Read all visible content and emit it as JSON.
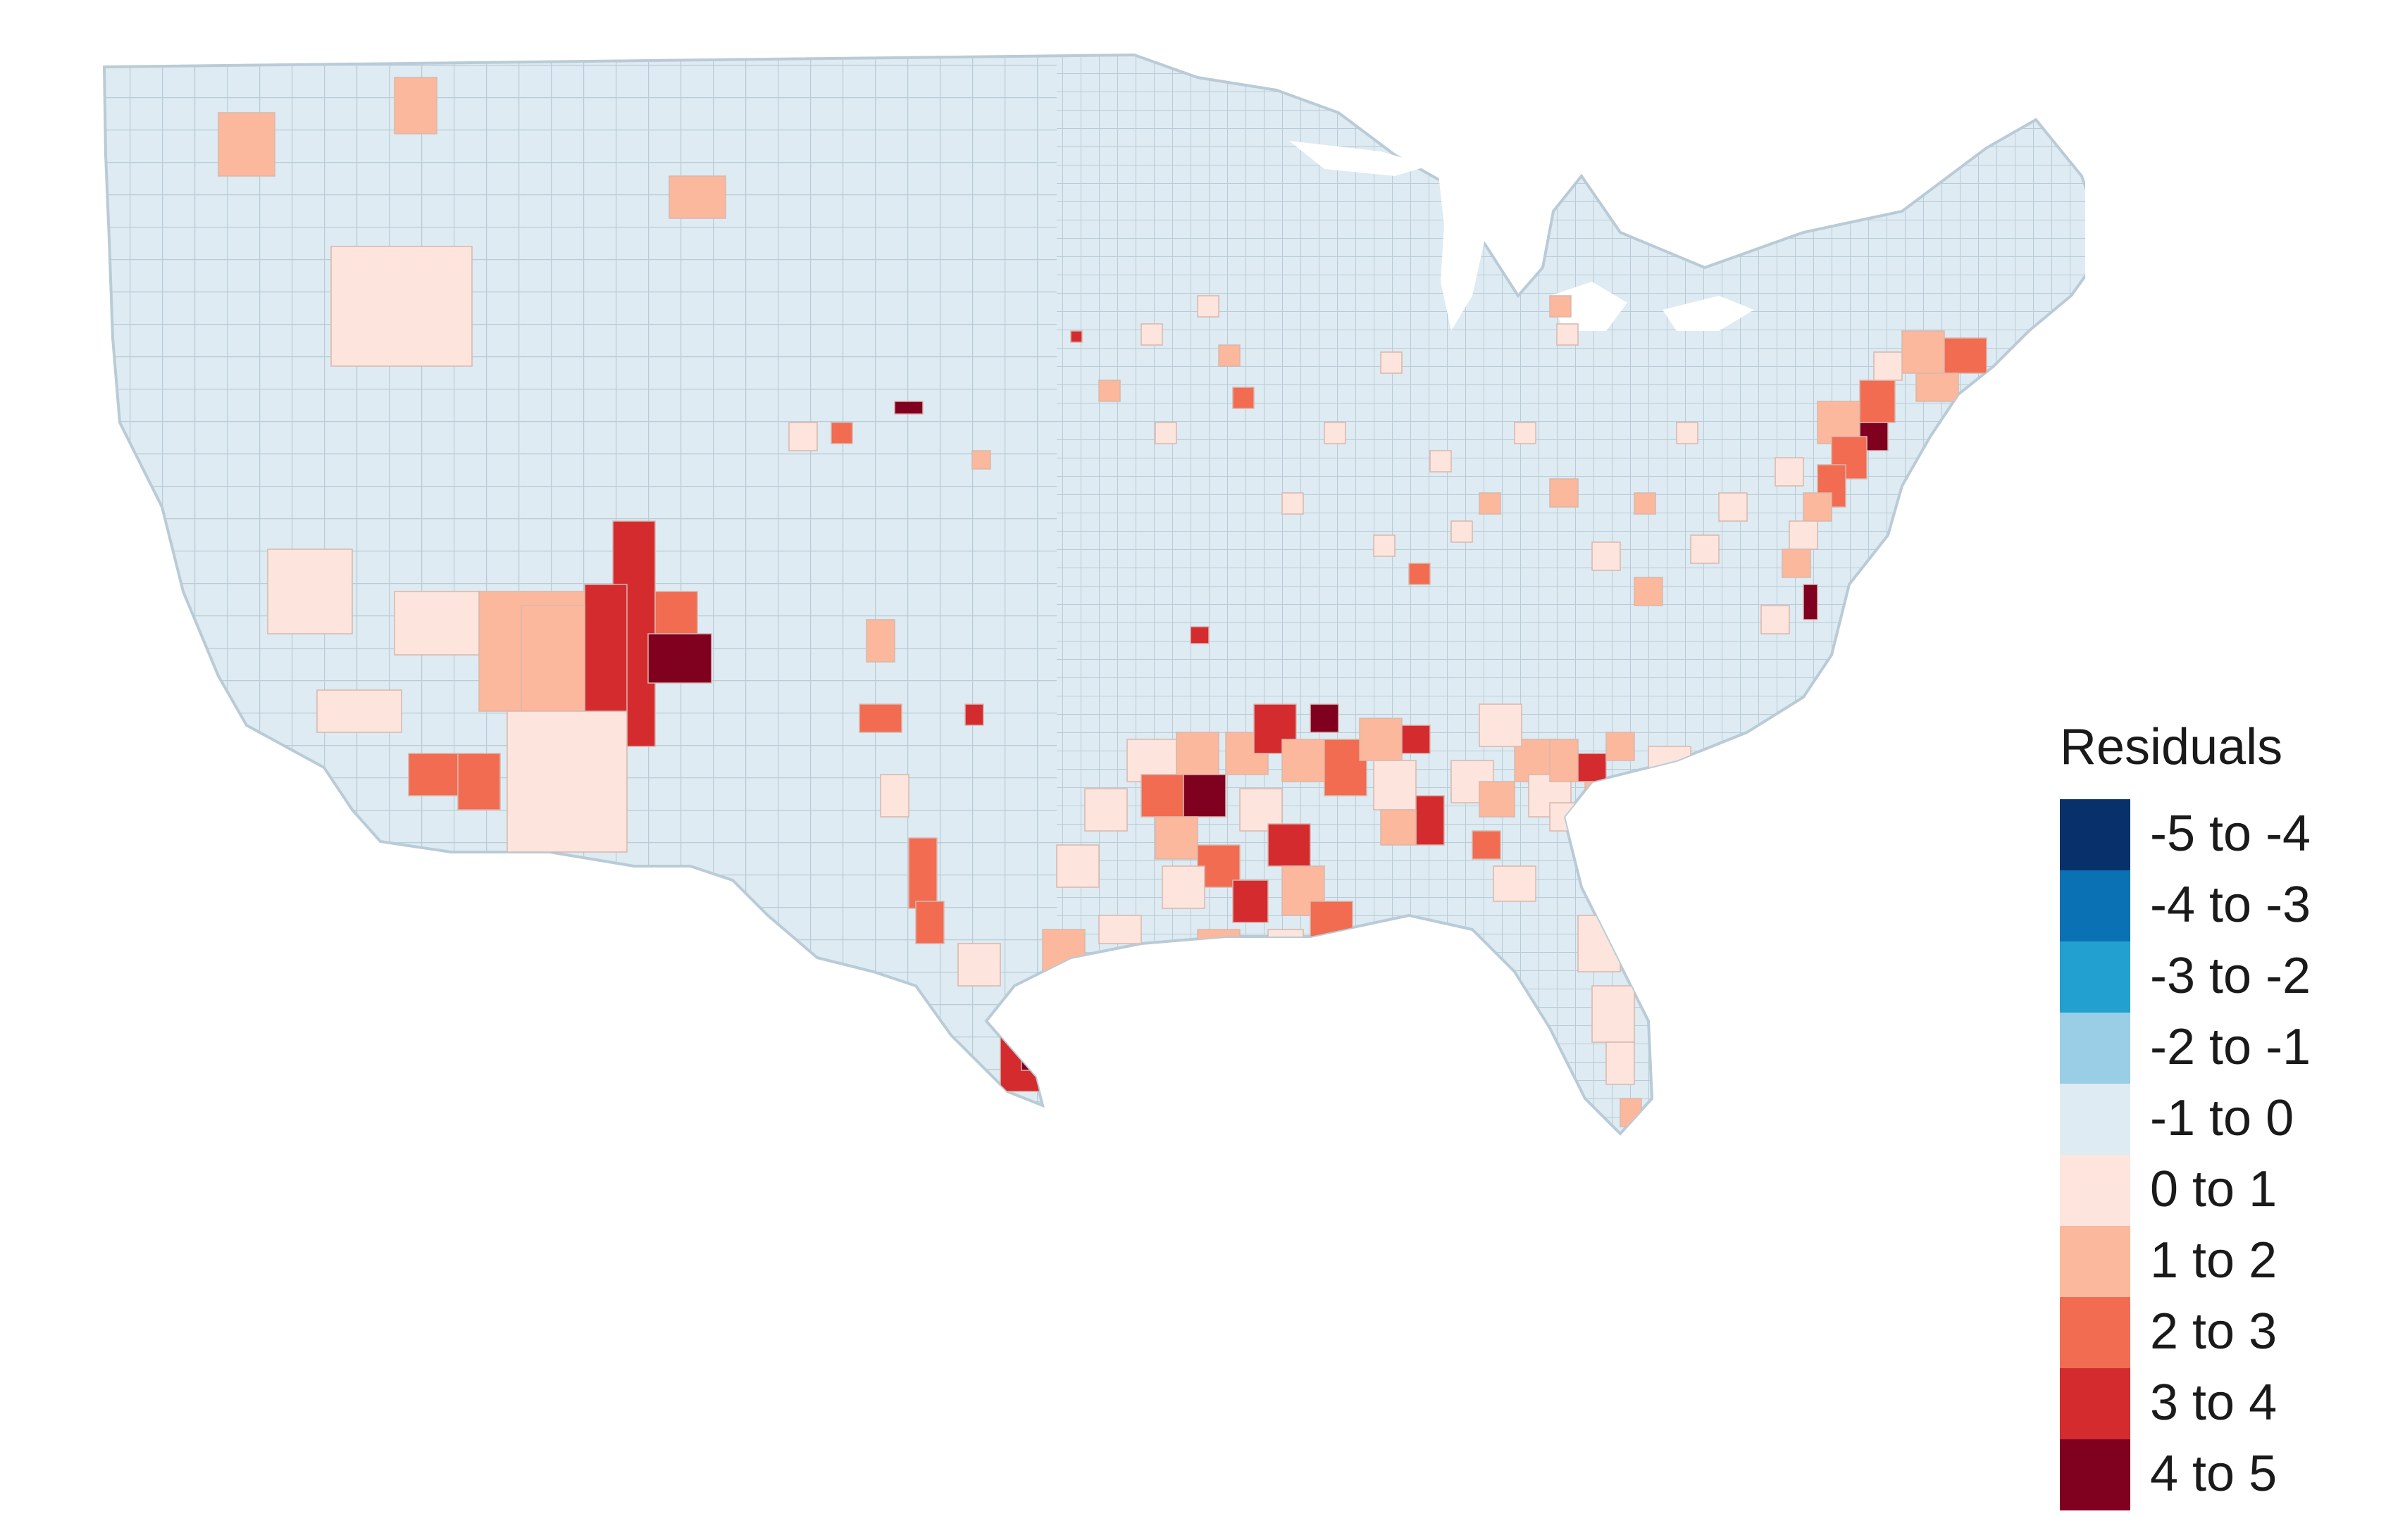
{
  "map": {
    "name": "Contiguous United States county map",
    "base_color": "#deebf2",
    "border_color": "#b9cbd6"
  },
  "legend": {
    "title": "Residuals",
    "items": [
      {
        "label": "-5 to -4",
        "color": "#08306b"
      },
      {
        "label": "-4 to -3",
        "color": "#0a71b4"
      },
      {
        "label": "-3 to -2",
        "color": "#22a0d0"
      },
      {
        "label": "-2 to -1",
        "color": "#9acde6"
      },
      {
        "label": "-1 to 0",
        "color": "#deebf2"
      },
      {
        "label": "0 to 1",
        "color": "#fde4dc"
      },
      {
        "label": "1 to 2",
        "color": "#fbb89c"
      },
      {
        "label": "2 to 3",
        "color": "#f26c51"
      },
      {
        "label": "3 to 4",
        "color": "#d42b2f"
      },
      {
        "label": "4 to 5",
        "color": "#800020"
      }
    ]
  }
}
